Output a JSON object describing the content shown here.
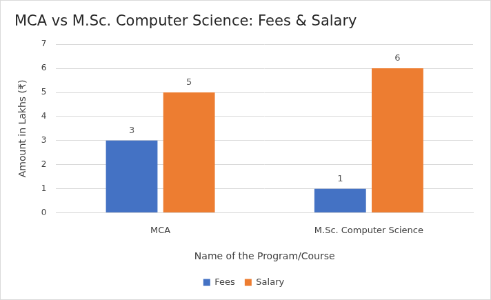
{
  "chart_data": {
    "type": "bar",
    "title": "MCA vs M.Sc. Computer Science: Fees & Salary",
    "x_label": "Name of the Program/Course",
    "y_label": "Amount in Lakhs (₹)",
    "categories": [
      "MCA",
      "M.Sc. Computer Science"
    ],
    "series": [
      {
        "name": "Fees",
        "color": "#4472c4",
        "values": [
          3,
          1
        ]
      },
      {
        "name": "Salary",
        "color": "#ed7d31",
        "values": [
          5,
          6
        ]
      }
    ],
    "ylim": [
      0,
      7
    ],
    "yticks": [
      0,
      1,
      2,
      3,
      4,
      5,
      6,
      7
    ],
    "grid": true,
    "legend": "bottom",
    "data_labels": true
  }
}
